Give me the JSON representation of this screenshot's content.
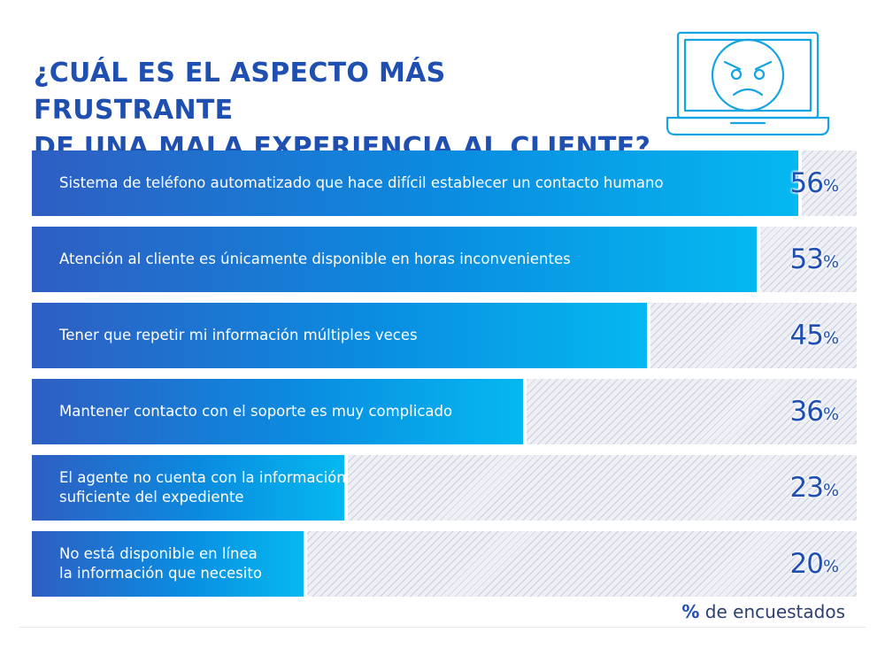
{
  "title_lines": [
    "¿CUÁL ES EL ASPECTO MÁS FRUSTRANTE",
    "DE UNA MALA EXPERIENCIA AL CLIENTE?"
  ],
  "icon": "angry-face-laptop-icon",
  "colors": {
    "title": "#1f4fb0",
    "bar_start": "#2f5ec2",
    "bar_end": "#05b8f0",
    "track": "#eef0f5",
    "icon_stroke": "#14a3e3"
  },
  "footnote": {
    "symbol": "%",
    "text": " de encuestados"
  },
  "chart_data": {
    "type": "bar",
    "orientation": "horizontal",
    "value_suffix": "%",
    "xlim": [
      0,
      60
    ],
    "categories": [
      [
        "Sistema de teléfono automatizado que hace difícil establecer un contacto humano"
      ],
      [
        "Atención al cliente es únicamente disponible en horas inconvenientes"
      ],
      [
        "Tener que repetir mi información múltiples veces"
      ],
      [
        "Mantener contacto con el soporte es muy complicado"
      ],
      [
        "El agente no cuenta con la información",
        "suficiente del expediente"
      ],
      [
        "No está disponible en línea",
        "la información que necesito"
      ]
    ],
    "values": [
      56,
      53,
      45,
      36,
      23,
      20
    ]
  }
}
